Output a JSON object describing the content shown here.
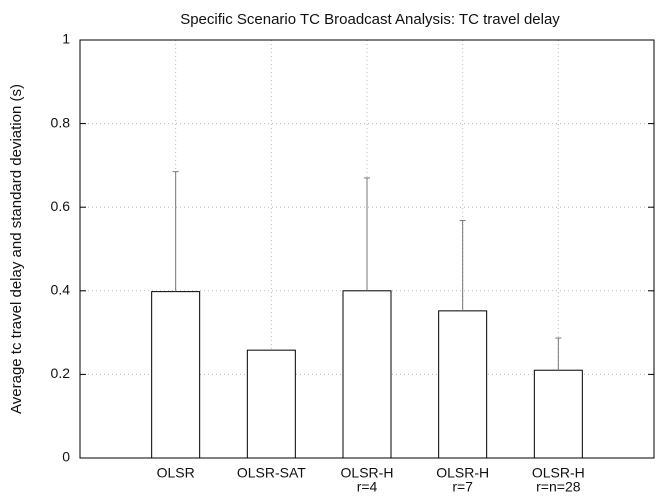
{
  "chart_data": {
    "type": "bar",
    "title": "Specific Scenario TC Broadcast Analysis: TC travel delay",
    "y_label": "Average tc travel delay and standard deviation (s)",
    "categories": [
      [
        "OLSR"
      ],
      [
        "OLSR-SAT"
      ],
      [
        "OLSR-H",
        "r=4"
      ],
      [
        "OLSR-H",
        "r=7"
      ],
      [
        "OLSR-H",
        "r=n=28"
      ]
    ],
    "values": [
      0.398,
      0.258,
      0.4,
      0.352,
      0.21
    ],
    "errors": [
      0.287,
      null,
      0.27,
      0.216,
      0.077
    ],
    "color": "#ffffff",
    "ylim": [
      0,
      1
    ],
    "yticks": [
      0,
      0.2,
      0.4,
      0.6,
      0.8,
      1
    ],
    "grid": true
  }
}
